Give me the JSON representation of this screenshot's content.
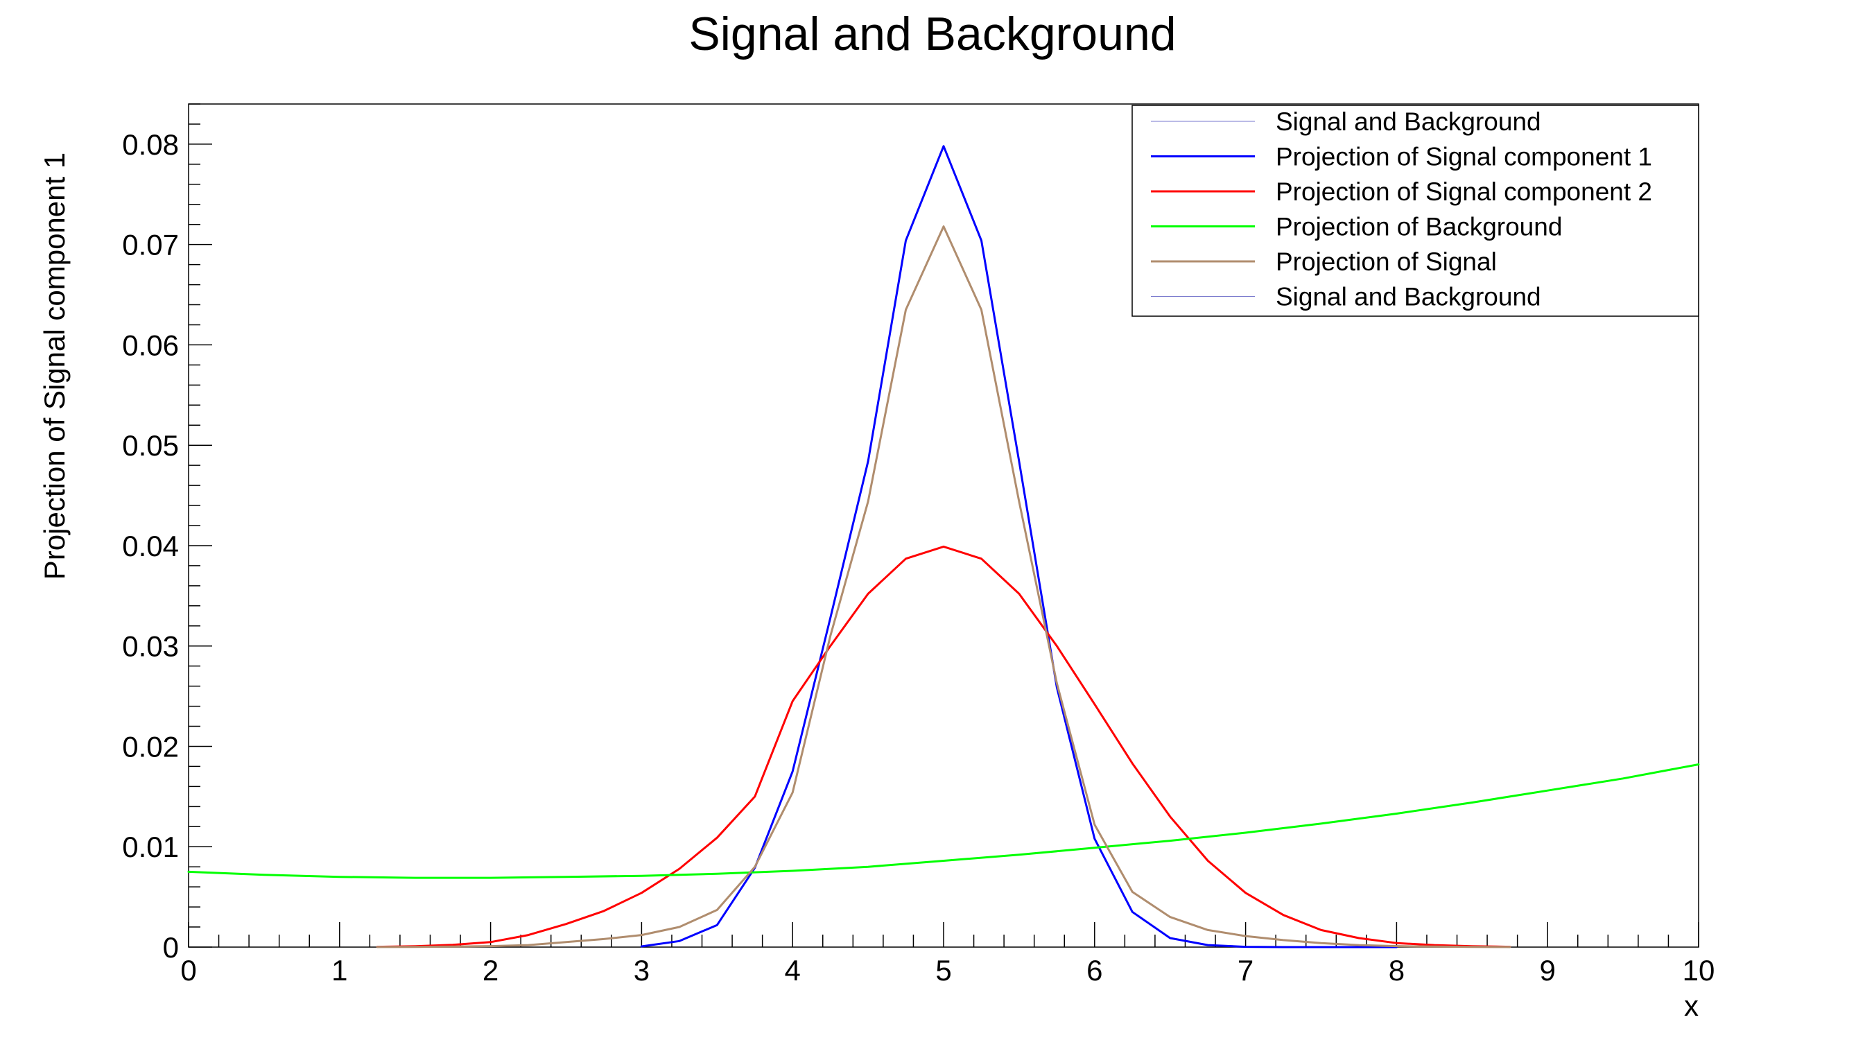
{
  "chart_data": {
    "type": "line",
    "title": "Signal and Background",
    "xlabel": "x",
    "ylabel": "Projection of Signal component 1",
    "xlim": [
      0,
      10
    ],
    "ylim": [
      0,
      0.084
    ],
    "x_ticks": [
      0,
      1,
      2,
      3,
      4,
      5,
      6,
      7,
      8,
      9,
      10
    ],
    "x_tick_labels": [
      "0",
      "1",
      "2",
      "3",
      "4",
      "5",
      "6",
      "7",
      "8",
      "9",
      "10"
    ],
    "y_ticks": [
      0,
      0.01,
      0.02,
      0.03,
      0.04,
      0.05,
      0.06,
      0.07,
      0.08
    ],
    "y_tick_labels": [
      "0",
      "0.01",
      "0.02",
      "0.03",
      "0.04",
      "0.05",
      "0.06",
      "0.07",
      "0.08"
    ],
    "grid": false,
    "legend_position": "top-right",
    "legend": [
      {
        "label": "Signal and Background",
        "color": "#7777cc",
        "width": 1
      },
      {
        "label": "Projection of Signal component 1",
        "color": "#0000ff",
        "width": 3
      },
      {
        "label": "Projection of Signal component 2",
        "color": "#ff0000",
        "width": 3
      },
      {
        "label": "Projection of Background",
        "color": "#00ff00",
        "width": 3
      },
      {
        "label": "Projection of Signal",
        "color": "#b08d6e",
        "width": 3
      },
      {
        "label": "Signal and Background",
        "color": "#7777cc",
        "width": 1
      }
    ],
    "x": [
      0,
      0.25,
      0.5,
      0.75,
      1,
      1.25,
      1.5,
      1.75,
      2,
      2.25,
      2.5,
      2.75,
      3,
      3.25,
      3.5,
      3.75,
      4,
      4.25,
      4.5,
      4.75,
      5,
      5.25,
      5.5,
      5.75,
      6,
      6.25,
      6.5,
      6.75,
      7,
      7.25,
      7.5,
      7.75,
      8,
      8.25,
      8.5,
      8.75,
      9,
      9.25,
      9.5,
      9.75,
      10
    ],
    "series": [
      {
        "name": "Projection of Signal component 1",
        "color": "#0000ff",
        "x": [
          3,
          3.25,
          3.5,
          3.75,
          4,
          4.25,
          4.5,
          4.75,
          5,
          5.25,
          5.5,
          5.75,
          6,
          6.25,
          6.5,
          6.75,
          7,
          7.25,
          7.5,
          7.75,
          8
        ],
        "values": [
          7e-05,
          0.0006,
          0.0022,
          0.0079,
          0.0175,
          0.0328,
          0.0484,
          0.0704,
          0.0798,
          0.0704,
          0.0484,
          0.0259,
          0.0108,
          0.0035,
          0.0009,
          0.0002,
          3e-05,
          0,
          0,
          0,
          0
        ]
      },
      {
        "name": "Projection of Signal component 2",
        "color": "#ff0000",
        "x": [
          1.25,
          1.5,
          1.75,
          2,
          2.25,
          2.5,
          2.75,
          3,
          3.25,
          3.5,
          3.75,
          4,
          4.25,
          4.5,
          4.75,
          5,
          5.25,
          5.5,
          5.75,
          6,
          6.25,
          6.5,
          6.75,
          7,
          7.25,
          7.5,
          7.75,
          8,
          8.25,
          8.5,
          8.75
        ],
        "values": [
          3e-05,
          9e-05,
          0.00023,
          0.0005,
          0.0012,
          0.0023,
          0.0036,
          0.0054,
          0.0078,
          0.0109,
          0.015,
          0.0245,
          0.03,
          0.0352,
          0.0387,
          0.0399,
          0.0387,
          0.0352,
          0.03,
          0.0242,
          0.0183,
          0.013,
          0.0086,
          0.0054,
          0.0032,
          0.0017,
          0.0009,
          0.0004,
          0.0002,
          9e-05,
          3e-05
        ]
      },
      {
        "name": "Projection of Background",
        "color": "#00ff00",
        "x": [
          0,
          0.5,
          1,
          1.5,
          2,
          2.5,
          3,
          3.5,
          4,
          4.5,
          5,
          5.5,
          6,
          6.5,
          7,
          7.5,
          8,
          8.5,
          9,
          9.5,
          10
        ],
        "values": [
          0.0075,
          0.0072,
          0.007,
          0.0069,
          0.0069,
          0.007,
          0.0071,
          0.0073,
          0.0076,
          0.008,
          0.0086,
          0.0092,
          0.0099,
          0.0106,
          0.0114,
          0.0123,
          0.0133,
          0.0144,
          0.0156,
          0.0168,
          0.0182
        ]
      },
      {
        "name": "Projection of Signal",
        "color": "#b08d6e",
        "x": [
          1.25,
          1.5,
          1.75,
          2,
          2.25,
          2.5,
          2.75,
          3,
          3.25,
          3.5,
          3.75,
          4,
          4.25,
          4.5,
          4.75,
          5,
          5.25,
          5.5,
          5.75,
          6,
          6.25,
          6.5,
          6.75,
          7,
          7.25,
          7.5,
          7.75,
          8,
          8.25,
          8.5,
          8.75
        ],
        "values": [
          1e-05,
          2e-05,
          5e-05,
          0.0001,
          0.0002,
          0.0005,
          0.0008,
          0.0012,
          0.002,
          0.0037,
          0.008,
          0.0154,
          0.031,
          0.0444,
          0.0635,
          0.0718,
          0.0635,
          0.0444,
          0.0263,
          0.0122,
          0.0055,
          0.003,
          0.0017,
          0.0011,
          0.0007,
          0.0004,
          0.0002,
          0.0001,
          5e-05,
          2e-05,
          1e-05
        ]
      }
    ]
  }
}
